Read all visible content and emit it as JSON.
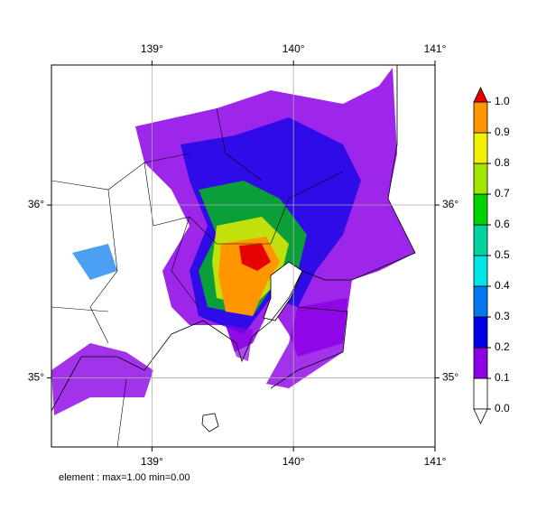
{
  "map": {
    "xlim": [
      138.29,
      141
    ],
    "ylim": [
      34.6,
      36.81
    ],
    "xticks": [
      {
        "value": 139,
        "label": "139°"
      },
      {
        "value": 140,
        "label": "140°"
      },
      {
        "value": 141,
        "label": "141°"
      }
    ],
    "yticks": [
      {
        "value": 35,
        "label": "35°"
      },
      {
        "value": 36,
        "label": "36°"
      }
    ],
    "grid": true
  },
  "colorbar": {
    "levels": [
      {
        "value": 0,
        "label": "0.0"
      },
      {
        "value": 0.1,
        "label": "0.1"
      },
      {
        "value": 0.2,
        "label": "0.2"
      },
      {
        "value": 0.3,
        "label": "0.3"
      },
      {
        "value": 0.4,
        "label": "0.4"
      },
      {
        "value": 0.5,
        "label": "0.5"
      },
      {
        "value": 0.6,
        "label": "0.6"
      },
      {
        "value": 0.7,
        "label": "0.7"
      },
      {
        "value": 0.8,
        "label": "0.8"
      },
      {
        "value": 0.9,
        "label": "0.9"
      },
      {
        "value": 1,
        "label": "1.0"
      }
    ],
    "colors": [
      "#ffffff",
      "#8c00e6",
      "#0000e6",
      "#0078f0",
      "#00e6e6",
      "#00d2a0",
      "#00d200",
      "#a0e600",
      "#f0f000",
      "#ff9600"
    ],
    "under_color": "#ffffff",
    "over_color": "#e60000"
  },
  "footer": "element : max=1.00 min=0.00"
}
